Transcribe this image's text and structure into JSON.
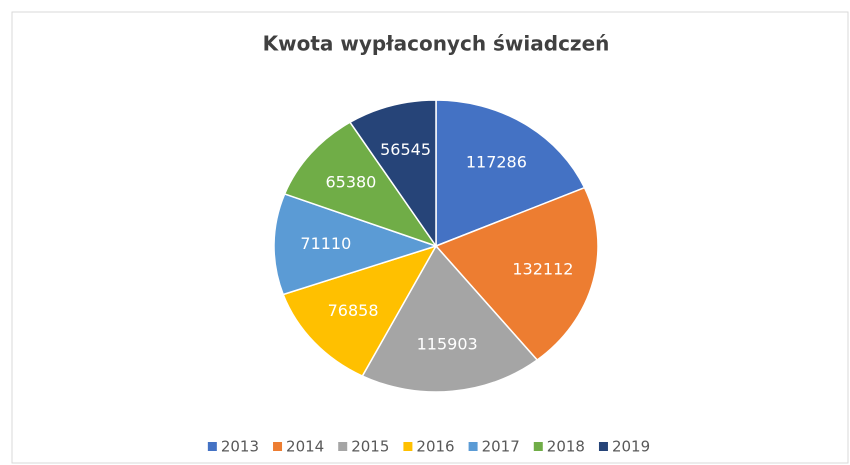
{
  "chart_data": {
    "type": "pie",
    "title": "Kwota wypłaconych świadczeń",
    "categories": [
      "2013",
      "2014",
      "2015",
      "2016",
      "2017",
      "2018",
      "2019"
    ],
    "values": [
      117286,
      132112,
      115903,
      76858,
      71110,
      65380,
      56545
    ],
    "colors": [
      "#4472c4",
      "#ed7d31",
      "#a5a5a5",
      "#ffc000",
      "#5b9bd5",
      "#70ad47",
      "#264478"
    ],
    "legend": "bottom"
  }
}
